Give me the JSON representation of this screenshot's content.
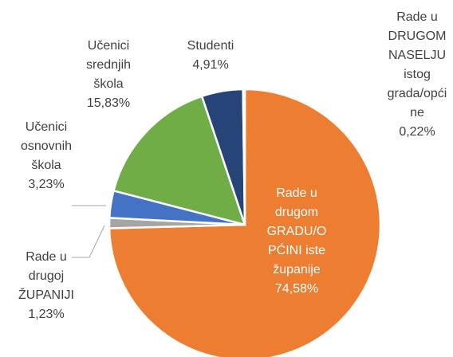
{
  "chart_data": {
    "type": "pie",
    "labels": [
      "Rade u drugom GRADU/OPĆINI iste županije",
      "Rade u drugoj ŽUPANIJI",
      "Učenici osnovnih škola",
      "Učenici srednjih škola",
      "Studenti",
      "Rade u DRUGOM NASELJU istog grada/općine"
    ],
    "values": [
      74.58,
      1.23,
      3.23,
      15.83,
      4.91,
      0.22
    ],
    "value_labels": [
      "74,58%",
      "1,23%",
      "3,23%",
      "15,83%",
      "4,91%",
      "0,22%"
    ],
    "colors": [
      "#ed7d31",
      "#a5a5a5",
      "#4472c4",
      "#70ad47",
      "#264478",
      "#5b9bd5"
    ]
  }
}
